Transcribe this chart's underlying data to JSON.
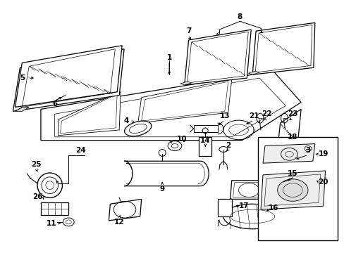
{
  "bg": "#ffffff",
  "lc": "#000000",
  "fw": 4.89,
  "fh": 3.6,
  "dpi": 100
}
